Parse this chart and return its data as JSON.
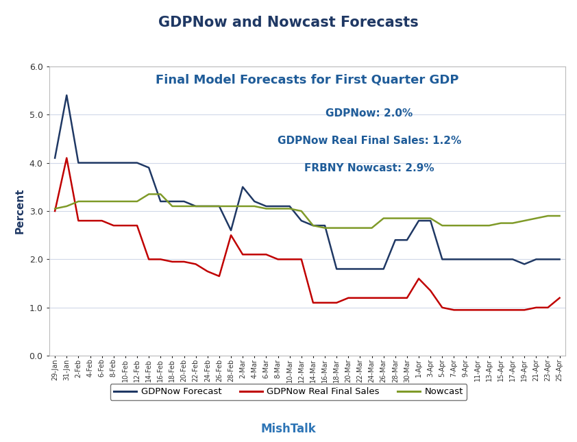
{
  "title": "GDPNow and Nowcast Forecasts",
  "subtitle": "Final Model Forecasts for First Quarter GDP",
  "annotation1": "GDPNow: 2.0%",
  "annotation2": "GDPNow Real Final Sales: 1.2%",
  "annotation3": "FRBNY Nowcast: 2.9%",
  "footer": "MishTalk",
  "ylabel": "Percent",
  "ylim": [
    0.0,
    6.0
  ],
  "yticks": [
    0.0,
    1.0,
    2.0,
    3.0,
    4.0,
    5.0,
    6.0
  ],
  "title_color": "#1F3864",
  "subtitle_color": "#1F5C99",
  "annotation_color": "#1F5C99",
  "footer_color": "#2E75B6",
  "ylabel_color": "#1F3864",
  "background_color": "#FFFFFF",
  "plot_background": "#FFFFFF",
  "grid_color": "#D0D8E8",
  "gdpnow_color": "#1F3864",
  "rfs_color": "#C00000",
  "nowcast_color": "#7F9A28",
  "x_labels": [
    "29-Jan",
    "31-Jan",
    "2-Feb",
    "4-Feb",
    "6-Feb",
    "8-Feb",
    "10-Feb",
    "12-Feb",
    "14-Feb",
    "16-Feb",
    "18-Feb",
    "20-Feb",
    "22-Feb",
    "24-Feb",
    "26-Feb",
    "28-Feb",
    "2-Mar",
    "4-Mar",
    "6-Mar",
    "8-Mar",
    "10-Mar",
    "12-Mar",
    "14-Mar",
    "16-Mar",
    "18-Mar",
    "20-Mar",
    "22-Mar",
    "24-Mar",
    "26-Mar",
    "28-Mar",
    "30-Mar",
    "1-Apr",
    "3-Apr",
    "5-Apr",
    "7-Apr",
    "9-Apr",
    "11-Apr",
    "13-Apr",
    "15-Apr",
    "17-Apr",
    "19-Apr",
    "21-Apr",
    "23-Apr",
    "25-Apr"
  ],
  "gdpnow": [
    4.1,
    5.4,
    4.0,
    4.0,
    4.0,
    4.0,
    4.0,
    4.0,
    3.9,
    3.2,
    3.2,
    3.2,
    3.1,
    3.1,
    3.1,
    2.6,
    3.5,
    3.2,
    3.1,
    3.1,
    3.1,
    2.8,
    2.7,
    2.7,
    1.8,
    1.8,
    1.8,
    1.8,
    1.8,
    2.4,
    2.4,
    2.8,
    2.8,
    2.0,
    2.0,
    2.0,
    2.0,
    2.0,
    2.0,
    2.0,
    1.9,
    2.0,
    2.0,
    2.0
  ],
  "rfs": [
    3.0,
    4.1,
    2.8,
    2.8,
    2.8,
    2.7,
    2.7,
    2.7,
    2.0,
    2.0,
    1.95,
    1.95,
    1.9,
    1.75,
    1.65,
    2.5,
    2.1,
    2.1,
    2.1,
    2.0,
    2.0,
    2.0,
    1.1,
    1.1,
    1.1,
    1.2,
    1.2,
    1.2,
    1.2,
    1.2,
    1.2,
    1.6,
    1.35,
    1.0,
    0.95,
    0.95,
    0.95,
    0.95,
    0.95,
    0.95,
    0.95,
    1.0,
    1.0,
    1.2
  ],
  "nowcast": [
    3.05,
    3.1,
    3.2,
    3.2,
    3.2,
    3.2,
    3.2,
    3.2,
    3.35,
    3.35,
    3.1,
    3.1,
    3.1,
    3.1,
    3.1,
    3.1,
    3.1,
    3.1,
    3.05,
    3.05,
    3.05,
    3.0,
    2.7,
    2.65,
    2.65,
    2.65,
    2.65,
    2.65,
    2.85,
    2.85,
    2.85,
    2.85,
    2.85,
    2.7,
    2.7,
    2.7,
    2.7,
    2.7,
    2.75,
    2.75,
    2.8,
    2.85,
    2.9,
    2.9
  ]
}
